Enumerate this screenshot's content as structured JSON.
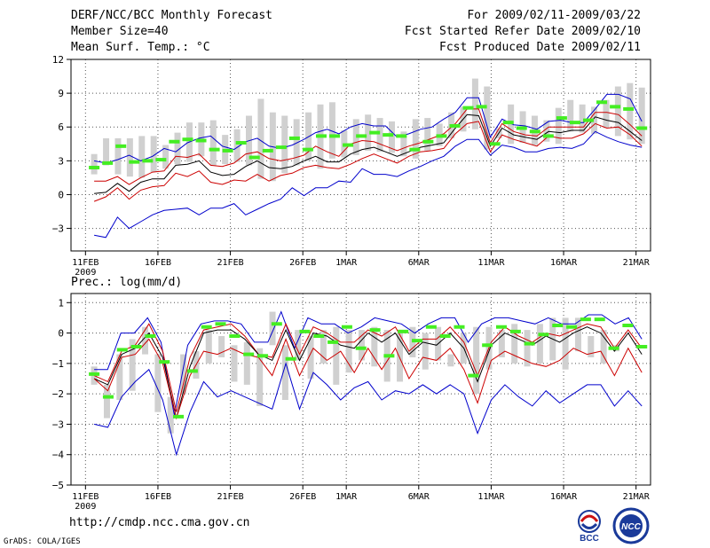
{
  "header": {
    "title": "DERF/NCC/BCC Monthly Forecast",
    "member_size": "Member Size=40",
    "variable": "Mean Surf. Temp.: °C",
    "period": "For 2009/02/11-2009/03/22",
    "refer_date": "Fcst Started Refer Date 2009/02/10",
    "produced_date": "Fcst Produced Date 2009/02/11"
  },
  "footer": {
    "url": "http://cmdp.ncc.cma.gov.cn",
    "credit": "GrADS: COLA/IGES",
    "logo_bcc_text": "BCC",
    "logo_ncc_text": "NCC"
  },
  "colors": {
    "box": "#d0d0d0",
    "ensemble_mean": "#44ee22",
    "median": "#000000",
    "quartile": "#cc0000",
    "extreme": "#0000cc",
    "grid": "#555555"
  },
  "chart_data": [
    {
      "type": "line",
      "title": "Mean Surf. Temp.: °C",
      "ylim": [
        -5,
        12
      ],
      "yticks": [
        -3,
        0,
        3,
        6,
        9,
        12
      ],
      "xlim": [
        0,
        40
      ],
      "x_tick_days": [
        1,
        6,
        11,
        16,
        19,
        24,
        29,
        34,
        39
      ],
      "x_tick_labels": [
        "11FEB",
        "16FEB",
        "21FEB",
        "26FEB",
        "1MAR",
        "6MAR",
        "11MAR",
        "16MAR",
        "21MAR"
      ],
      "year_label": "2009",
      "box_low": [
        1.8,
        2.6,
        1.8,
        1.6,
        1.5,
        2.0,
        2.3,
        2.7,
        2.9,
        3.4,
        2.6,
        2.7,
        2.9,
        2.6,
        1.4,
        1.2,
        1.9,
        2.6,
        3.0,
        2.3,
        3.2,
        3.3,
        3.5,
        3.9,
        3.8,
        3.7,
        3.4,
        3.2,
        3.9,
        4.3,
        5.0,
        5.6,
        5.8,
        4.0,
        5.0,
        4.5,
        4.6,
        4.4,
        4.7,
        4.5,
        5.6,
        5.5,
        5.4,
        5.9,
        5.2,
        4.9,
        4.5
      ],
      "box_high": [
        3.6,
        5.0,
        5.0,
        5.0,
        5.2,
        5.2,
        4.4,
        5.5,
        6.4,
        6.4,
        6.6,
        5.3,
        5.8,
        7.0,
        8.5,
        7.3,
        7.0,
        6.7,
        7.3,
        8.0,
        8.2,
        5.7,
        6.7,
        7.1,
        6.8,
        6.5,
        5.6,
        6.7,
        6.8,
        6.3,
        7.3,
        7.8,
        10.3,
        9.6,
        5.9,
        8.0,
        7.4,
        7.0,
        6.6,
        7.7,
        8.4,
        8.0,
        7.8,
        8.4,
        9.6,
        9.9,
        9.5
      ],
      "series": [
        {
          "name": "extreme_max",
          "values": [
            3.0,
            2.8,
            3.1,
            3.5,
            3.0,
            3.4,
            4.1,
            3.8,
            4.6,
            5.0,
            5.2,
            4.3,
            4.0,
            4.7,
            5.0,
            4.3,
            4.1,
            4.4,
            4.9,
            5.5,
            5.8,
            5.4,
            6.0,
            6.3,
            6.1,
            6.1,
            5.1,
            5.4,
            5.8,
            6.0,
            6.7,
            7.3,
            8.6,
            8.6,
            5.1,
            6.7,
            6.2,
            6.1,
            5.8,
            6.5,
            6.6,
            6.4,
            6.4,
            7.6,
            8.9,
            8.9,
            8.5,
            6.5
          ]
        },
        {
          "name": "upper_quartile",
          "values": [
            1.2,
            1.2,
            1.6,
            0.9,
            1.5,
            2.0,
            2.1,
            3.4,
            3.3,
            3.6,
            2.6,
            2.5,
            2.8,
            3.6,
            3.8,
            3.2,
            3.0,
            3.2,
            3.5,
            4.3,
            3.8,
            3.4,
            4.5,
            4.8,
            4.7,
            4.3,
            3.9,
            4.3,
            4.6,
            5.0,
            5.4,
            6.3,
            7.6,
            7.6,
            4.6,
            6.3,
            5.6,
            5.3,
            5.2,
            6.0,
            6.0,
            6.0,
            6.0,
            7.3,
            7.3,
            7.1,
            6.2,
            5.2
          ]
        },
        {
          "name": "median",
          "values": [
            0.1,
            0.2,
            1.0,
            0.3,
            1.1,
            1.4,
            1.4,
            2.6,
            2.7,
            3.0,
            2.0,
            1.7,
            1.8,
            2.5,
            3.0,
            2.4,
            2.3,
            2.5,
            3.0,
            3.4,
            2.9,
            2.9,
            3.6,
            4.0,
            4.2,
            3.8,
            3.4,
            3.8,
            4.2,
            4.4,
            4.6,
            5.9,
            7.1,
            7.0,
            4.3,
            5.9,
            5.3,
            5.1,
            4.9,
            5.6,
            5.5,
            5.7,
            5.7,
            6.9,
            6.6,
            6.4,
            5.6,
            4.8
          ]
        },
        {
          "name": "lower_quartile",
          "values": [
            -0.6,
            -0.2,
            0.6,
            -0.4,
            0.4,
            0.7,
            0.8,
            1.9,
            1.6,
            2.1,
            1.1,
            0.9,
            1.3,
            1.2,
            1.8,
            1.2,
            1.7,
            1.9,
            2.4,
            2.6,
            2.4,
            2.3,
            2.7,
            3.2,
            3.6,
            3.2,
            2.8,
            3.4,
            3.8,
            3.9,
            4.1,
            5.4,
            6.3,
            6.5,
            3.8,
            5.3,
            4.9,
            4.6,
            4.3,
            5.2,
            5.0,
            5.0,
            5.4,
            6.3,
            5.9,
            6.0,
            5.3,
            4.3
          ]
        },
        {
          "name": "extreme_min",
          "values": [
            -3.6,
            -3.8,
            -2.0,
            -3.0,
            -2.4,
            -1.8,
            -1.4,
            -1.3,
            -1.2,
            -1.8,
            -1.2,
            -1.2,
            -0.8,
            -1.8,
            -1.3,
            -0.8,
            -0.4,
            0.6,
            -0.1,
            0.6,
            0.6,
            1.2,
            1.1,
            2.3,
            1.8,
            1.8,
            1.6,
            2.1,
            2.5,
            3.0,
            3.4,
            4.3,
            4.9,
            4.9,
            3.5,
            4.4,
            4.2,
            3.8,
            3.8,
            4.1,
            4.2,
            4.1,
            4.5,
            5.6,
            5.1,
            4.7,
            4.4,
            4.2
          ]
        },
        {
          "name": "ensemble_mean",
          "values": [
            2.4,
            2.8,
            4.3,
            2.9,
            3.0,
            3.1,
            4.7,
            4.9,
            4.8,
            4.0,
            3.9,
            4.6,
            3.3,
            3.9,
            4.2,
            5.0,
            4.0,
            5.2,
            5.2,
            4.4,
            5.2,
            5.5,
            5.3,
            5.2,
            4.0,
            4.7,
            5.2,
            6.1,
            7.7,
            7.8,
            4.5,
            6.4,
            5.9,
            5.6,
            5.2,
            6.8,
            6.4,
            6.6,
            8.2,
            7.8,
            7.6,
            5.9
          ]
        }
      ]
    },
    {
      "type": "line",
      "title": "Prec.: log(mm/d)",
      "ylim": [
        -5,
        1.3
      ],
      "yticks": [
        -5,
        -4,
        -3,
        -2,
        -1,
        0,
        1
      ],
      "xlim": [
        0,
        40
      ],
      "x_tick_days": [
        1,
        6,
        11,
        16,
        19,
        24,
        29,
        34,
        39
      ],
      "x_tick_labels": [
        "11FEB",
        "16FEB",
        "21FEB",
        "26FEB",
        "1MAR",
        "6MAR",
        "11MAR",
        "16MAR",
        "21MAR"
      ],
      "year_label": "2009",
      "box_low": [
        -1.7,
        -2.8,
        -2.2,
        -1.9,
        -0.7,
        -2.6,
        -3.3,
        -2.0,
        -1.5,
        -1.0,
        -0.8,
        -1.6,
        -1.7,
        -2.4,
        -0.4,
        -2.2,
        -0.9,
        -1.5,
        -1.0,
        -1.7,
        -1.3,
        -0.9,
        -1.1,
        -1.6,
        -1.6,
        -0.8,
        -1.2,
        -0.9,
        -1.1,
        -1.0,
        -2.0,
        -1.2,
        -0.8,
        -1.0,
        -1.1,
        -1.0,
        -0.9,
        -1.2,
        -0.6,
        -0.8,
        -1.0,
        -0.6,
        -1.5,
        -1.6
      ],
      "box_high": [
        -1.1,
        -1.7,
        -0.7,
        -0.2,
        0.2,
        -0.7,
        -2.1,
        -0.7,
        -0.6,
        0.1,
        -0.1,
        -0.4,
        -0.3,
        -0.5,
        0.7,
        -0.4,
        0.1,
        -0.1,
        0.1,
        0.2,
        0.1,
        0.1,
        0.2,
        0.1,
        0.0,
        0.2,
        0.0,
        0.2,
        -0.7,
        0.0,
        0.2,
        0.2,
        0.1,
        0.3,
        0.1,
        0.3,
        0.5,
        0.5,
        0.5,
        -0.1,
        0.1,
        -0.4
      ],
      "series": [
        {
          "name": "extreme_max",
          "values": [
            -1.2,
            -1.2,
            0.0,
            0.0,
            0.5,
            -0.3,
            -2.7,
            -0.4,
            0.3,
            0.4,
            0.4,
            0.3,
            -0.3,
            -0.3,
            0.7,
            -0.5,
            0.5,
            0.3,
            0.3,
            0.0,
            0.2,
            0.5,
            0.4,
            0.3,
            0.0,
            0.3,
            0.5,
            0.5,
            -0.3,
            0.3,
            0.5,
            0.5,
            0.4,
            0.3,
            0.5,
            0.3,
            0.3,
            0.6,
            0.6,
            0.3,
            0.5,
            -0.2
          ]
        },
        {
          "name": "upper_quartile",
          "values": [
            -1.4,
            -1.6,
            -0.6,
            -0.4,
            0.3,
            -0.6,
            -2.6,
            -0.8,
            0.1,
            0.2,
            0.3,
            -0.1,
            -0.7,
            -0.8,
            0.3,
            -0.7,
            0.2,
            0.0,
            -0.3,
            -0.3,
            0.1,
            -0.1,
            0.2,
            -0.6,
            -0.2,
            -0.2,
            0.2,
            -0.3,
            -1.4,
            -0.3,
            0.2,
            -0.1,
            -0.3,
            0.0,
            -0.1,
            0.1,
            0.3,
            0.2,
            -0.5,
            0.1,
            -0.5
          ]
        },
        {
          "name": "median",
          "values": [
            -1.5,
            -1.7,
            -0.7,
            -0.5,
            0.0,
            -0.8,
            -2.8,
            -1.1,
            0.0,
            0.1,
            0.1,
            -0.2,
            -0.7,
            -0.9,
            0.1,
            -0.9,
            0.0,
            -0.1,
            -0.4,
            -0.5,
            0.0,
            -0.3,
            0.0,
            -0.7,
            -0.3,
            -0.4,
            0.0,
            -0.5,
            -1.6,
            -0.4,
            0.0,
            -0.2,
            -0.4,
            -0.1,
            -0.3,
            0.0,
            0.2,
            0.0,
            -0.6,
            0.0,
            -0.7
          ]
        },
        {
          "name": "lower_quartile",
          "values": [
            -1.5,
            -1.9,
            -0.8,
            -0.7,
            -0.2,
            -1.0,
            -2.8,
            -1.4,
            -0.6,
            -0.7,
            -0.5,
            -0.7,
            -0.8,
            -1.4,
            -0.2,
            -1.4,
            -0.5,
            -0.9,
            -0.6,
            -1.3,
            -0.5,
            -1.2,
            -0.5,
            -1.5,
            -0.8,
            -0.9,
            -0.5,
            -1.2,
            -2.3,
            -0.9,
            -0.6,
            -0.8,
            -1.0,
            -1.1,
            -0.9,
            -0.5,
            -0.7,
            -0.6,
            -1.4,
            -0.5,
            -1.3
          ]
        },
        {
          "name": "extreme_min",
          "values": [
            -3.0,
            -3.1,
            -2.1,
            -1.6,
            -1.2,
            -2.2,
            -4.0,
            -2.6,
            -1.6,
            -2.1,
            -1.9,
            -2.1,
            -2.3,
            -2.5,
            -1.0,
            -2.5,
            -1.3,
            -1.7,
            -2.2,
            -1.8,
            -1.6,
            -2.2,
            -1.9,
            -2.0,
            -1.7,
            -2.0,
            -1.7,
            -2.0,
            -3.3,
            -2.2,
            -1.7,
            -2.1,
            -2.4,
            -1.9,
            -2.3,
            -2.0,
            -1.7,
            -1.7,
            -2.4,
            -1.9,
            -2.4
          ]
        },
        {
          "name": "ensemble_mean",
          "values": [
            -1.35,
            -2.1,
            -0.55,
            -0.45,
            -0.1,
            -0.95,
            -2.75,
            -1.25,
            0.2,
            0.3,
            -0.1,
            -0.7,
            -0.75,
            0.3,
            -0.85,
            0.05,
            -0.1,
            -0.3,
            0.2,
            -0.5,
            0.1,
            -0.75,
            0.05,
            -0.25,
            0.2,
            -0.1,
            0.2,
            -1.4,
            -0.4,
            0.2,
            0.05,
            -0.35,
            -0.05,
            0.25,
            0.2,
            0.45,
            0.45,
            -0.5,
            0.25,
            -0.45
          ]
        }
      ]
    }
  ]
}
